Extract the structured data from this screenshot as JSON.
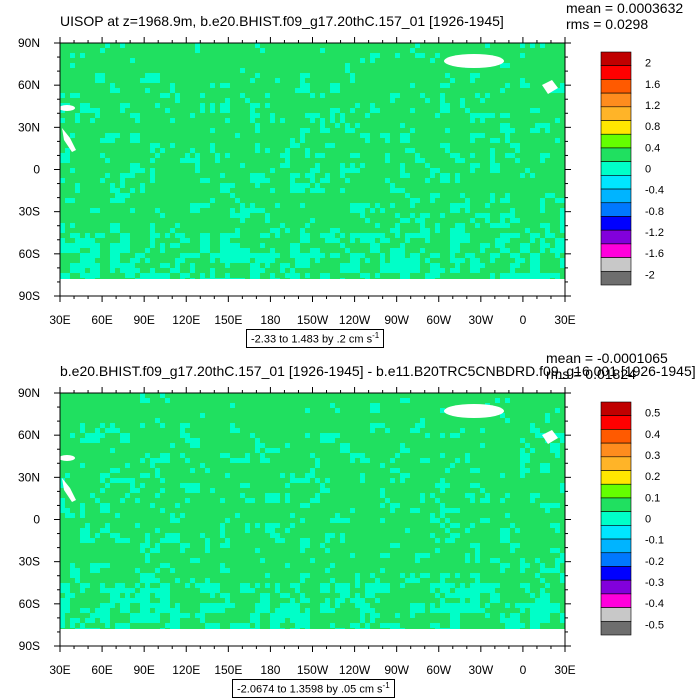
{
  "chart_data": [
    {
      "type": "heatmap",
      "title": "UISOP at z=1968.9m, b.e20.BHIST.f09_g17.20thC.157_01 [1926-1945]",
      "stats": {
        "mean": "mean = 0.0003632",
        "rms": "rms = 0.0298"
      },
      "range_text": "-2.33 to 1.483 by .2 cm s",
      "range_unit_sup": "-1",
      "x_tick_labels": [
        "30E",
        "60E",
        "90E",
        "120E",
        "150E",
        "180",
        "150W",
        "120W",
        "90W",
        "60W",
        "30W",
        "0",
        "30E"
      ],
      "y_tick_labels": [
        "90N",
        "60N",
        "30N",
        "0",
        "30S",
        "60S",
        "90S"
      ],
      "xlim": [
        30,
        390
      ],
      "ylim": [
        -90,
        90
      ],
      "colorbar": {
        "levels": [
          "2",
          "1.6",
          "1.2",
          "0.8",
          "0.4",
          "0",
          "-0.4",
          "-0.8",
          "-1.2",
          "-1.6",
          "-2"
        ],
        "colors": [
          "#c00000",
          "#ff0000",
          "#ff5a00",
          "#ff8c1e",
          "#ffb428",
          "#ffe600",
          "#64ff00",
          "#20e060",
          "#00ffc8",
          "#00e6ff",
          "#00b4ff",
          "#0078ff",
          "#0000ff",
          "#8200dc",
          "#ff00dc",
          "#c8c8c8",
          "#6e6e6e"
        ],
        "label_indices": [
          0,
          2,
          4,
          6,
          8,
          10,
          12,
          14,
          16,
          18,
          20
        ]
      }
    },
    {
      "type": "heatmap",
      "title": "b.e20.BHIST.f09_g17.20thC.157_01 [1926-1945] - b.e11.B20TRC5CNBDRD.f09_g16.001 [1926-1945]",
      "stats": {
        "mean": "mean = -0.0001065",
        "rms": "rms = 0.01824"
      },
      "range_text": "-2.0674 to 1.3598 by .05 cm s",
      "range_unit_sup": "-1",
      "x_tick_labels": [
        "30E",
        "60E",
        "90E",
        "120E",
        "150E",
        "180",
        "150W",
        "120W",
        "90W",
        "60W",
        "30W",
        "0",
        "30E"
      ],
      "y_tick_labels": [
        "90N",
        "60N",
        "30N",
        "0",
        "30S",
        "60S",
        "90S"
      ],
      "xlim": [
        30,
        390
      ],
      "ylim": [
        -90,
        90
      ],
      "colorbar": {
        "levels": [
          "0.5",
          "0.4",
          "0.3",
          "0.2",
          "0.1",
          "0",
          "-0.1",
          "-0.2",
          "-0.3",
          "-0.4",
          "-0.5"
        ],
        "colors": [
          "#c00000",
          "#ff0000",
          "#ff5a00",
          "#ff8c1e",
          "#ffb428",
          "#ffe600",
          "#64ff00",
          "#20e060",
          "#00ffc8",
          "#00e6ff",
          "#00b4ff",
          "#0078ff",
          "#0000ff",
          "#8200dc",
          "#ff00dc",
          "#c8c8c8",
          "#6e6e6e"
        ],
        "label_indices": [
          0,
          2,
          4,
          6,
          8,
          10,
          12,
          14,
          16,
          18,
          20
        ]
      }
    }
  ],
  "colors": {
    "ocean_fill": "#20e060",
    "ocean_speckle": "#00ffc8",
    "land_mask": "#ffffff"
  }
}
